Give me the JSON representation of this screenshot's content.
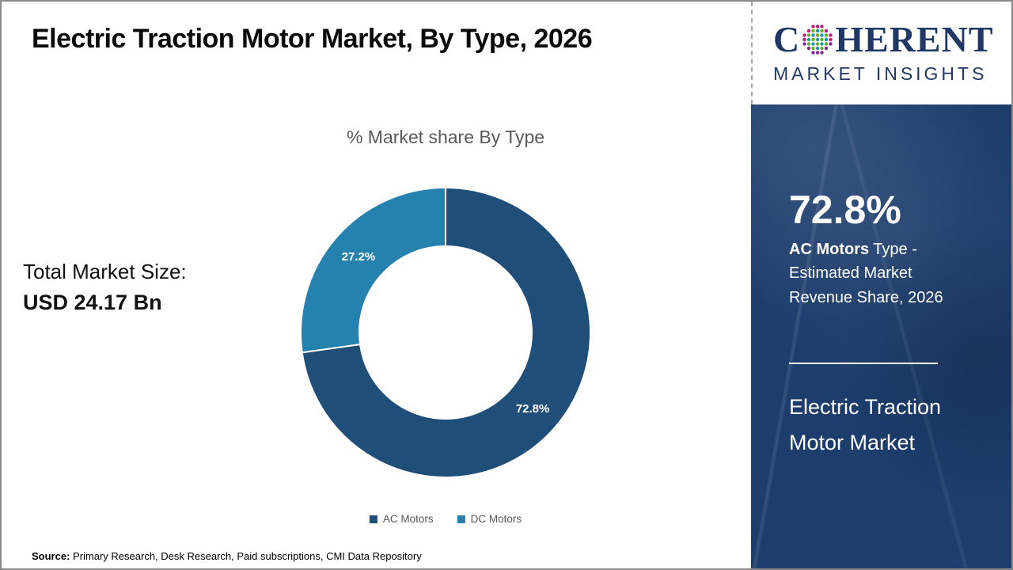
{
  "slide": {
    "title": "Electric Traction Motor Market, By Type, 2026",
    "source_label": "Source:",
    "source_text": " Primary Research, Desk Research, Paid subscriptions, CMI Data Repository"
  },
  "logo": {
    "word_start": "C",
    "word_end": "HERENT",
    "subtitle": "MARKET INSIGHTS",
    "globe_icon": "dotted-globe"
  },
  "stats": {
    "total_label": "Total Market Size:",
    "total_value": "USD 24.17 Bn"
  },
  "chart_data": {
    "type": "pie",
    "donut": true,
    "title": "% Market share By Type",
    "categories": [
      "AC Motors",
      "DC Motors"
    ],
    "values": [
      72.8,
      27.2
    ],
    "labels": [
      "72.8%",
      "27.2%"
    ],
    "colors": [
      "#1F4E79",
      "#2581AD"
    ],
    "start_angle_deg": 0,
    "direction": "clockwise",
    "legend_position": "bottom"
  },
  "side_panel": {
    "stat_value": "72.8%",
    "stat_label_bold": "AC Motors",
    "stat_label_rest": " Type - Estimated Market Revenue Share, 2026",
    "panel_title": "Electric Traction Motor Market"
  },
  "colors": {
    "panel_navy": "#1d3d6d",
    "logo_navy": "#1f3864",
    "ac_blue": "#1F4E79",
    "dc_blue": "#2581AD",
    "chart_title_gray": "#595959",
    "globe_pink": "#c2187e",
    "globe_purple": "#82268f",
    "globe_teal": "#169c9e",
    "globe_green": "#66ae27"
  }
}
